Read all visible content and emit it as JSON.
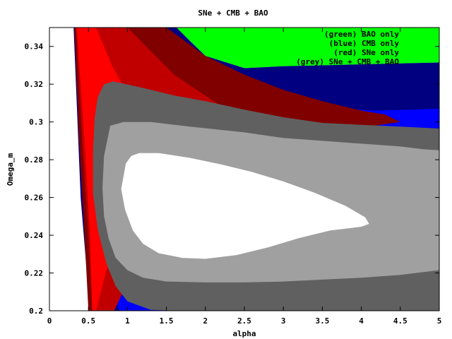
{
  "chart_data": {
    "type": "area",
    "title": "SNe + CMB + BAO",
    "xlabel": "alpha",
    "ylabel": "Omega_m",
    "xlim": [
      0,
      5
    ],
    "ylim": [
      0.2,
      0.35
    ],
    "xticks": [
      {
        "value": 0,
        "label": "0"
      },
      {
        "value": 0.5,
        "label": "0.5"
      },
      {
        "value": 1,
        "label": "1"
      },
      {
        "value": 1.5,
        "label": "1.5"
      },
      {
        "value": 2,
        "label": "2"
      },
      {
        "value": 2.5,
        "label": "2.5"
      },
      {
        "value": 3,
        "label": "3"
      },
      {
        "value": 3.5,
        "label": "3.5"
      },
      {
        "value": 4,
        "label": "4"
      },
      {
        "value": 4.5,
        "label": "4.5"
      },
      {
        "value": 5,
        "label": "5"
      }
    ],
    "yticks": [
      {
        "value": 0.2,
        "label": "0.2"
      },
      {
        "value": 0.22,
        "label": "0.22"
      },
      {
        "value": 0.24,
        "label": "0.24"
      },
      {
        "value": 0.26,
        "label": "0.26"
      },
      {
        "value": 0.28,
        "label": "0.28"
      },
      {
        "value": 0.3,
        "label": "0.3"
      },
      {
        "value": 0.32,
        "label": "0.32"
      },
      {
        "value": 0.34,
        "label": "0.34"
      }
    ],
    "legend": {
      "placement": "top-right",
      "entries": [
        "(green) BAO only",
        "(blue) CMB only",
        "(red) SNe only",
        "(grey) SNe + CMB + BAO"
      ]
    },
    "regions": [
      {
        "name": "bao-green-region",
        "color": "#00ff00",
        "points": [
          [
            1.5,
            0.35
          ],
          [
            5,
            0.35
          ],
          [
            5,
            0.3315
          ],
          [
            4.5,
            0.331
          ],
          [
            4,
            0.3305
          ],
          [
            3.5,
            0.33
          ],
          [
            3,
            0.3295
          ],
          [
            2.5,
            0.3285
          ],
          [
            2,
            0.335
          ],
          [
            1.8,
            0.343
          ],
          [
            1.63,
            0.35
          ]
        ]
      },
      {
        "name": "cmb-blue-outer-region",
        "color": "#000080",
        "points": [
          [
            1.63,
            0.35
          ],
          [
            1.8,
            0.343
          ],
          [
            2,
            0.335
          ],
          [
            2.5,
            0.3285
          ],
          [
            3,
            0.3295
          ],
          [
            3.5,
            0.33
          ],
          [
            4,
            0.3305
          ],
          [
            4.5,
            0.331
          ],
          [
            5,
            0.3315
          ],
          [
            5,
            0.2
          ],
          [
            0.52,
            0.2
          ],
          [
            0.4,
            0.26
          ],
          [
            0.31,
            0.35
          ]
        ]
      },
      {
        "name": "cmb-blue-inner-region",
        "color": "#0000ff",
        "points": [
          [
            0.4,
            0.35
          ],
          [
            1.0,
            0.35
          ],
          [
            1.4,
            0.33
          ],
          [
            2.2,
            0.318
          ],
          [
            3,
            0.312
          ],
          [
            3.7,
            0.307
          ],
          [
            4.2,
            0.306
          ],
          [
            5,
            0.307
          ],
          [
            5,
            0.2
          ],
          [
            0.9,
            0.2
          ],
          [
            0.8,
            0.21
          ],
          [
            0.75,
            0.22
          ],
          [
            0.6,
            0.24
          ],
          [
            0.5,
            0.27
          ],
          [
            0.38,
            0.31
          ]
        ]
      },
      {
        "name": "sne-red-outer-region",
        "color": "#800000",
        "points": [
          [
            0.32,
            0.35
          ],
          [
            1.5,
            0.35
          ],
          [
            2,
            0.335
          ],
          [
            2.5,
            0.325
          ],
          [
            3,
            0.317
          ],
          [
            3.5,
            0.311
          ],
          [
            4,
            0.306
          ],
          [
            4.3,
            0.304
          ],
          [
            4.5,
            0.3
          ],
          [
            3.5,
            0.294
          ],
          [
            3,
            0.288
          ],
          [
            2.2,
            0.264
          ],
          [
            1.5,
            0.24
          ],
          [
            1.1,
            0.22
          ],
          [
            0.9,
            0.21
          ],
          [
            0.8,
            0.2
          ],
          [
            0.5,
            0.2
          ],
          [
            0.45,
            0.24
          ],
          [
            0.38,
            0.29
          ]
        ]
      },
      {
        "name": "sne-red-mid-region",
        "color": "#c00000",
        "points": [
          [
            0.34,
            0.35
          ],
          [
            1.0,
            0.35
          ],
          [
            1.6,
            0.325
          ],
          [
            2.5,
            0.3
          ],
          [
            3.2,
            0.285
          ],
          [
            2.5,
            0.27
          ],
          [
            1.8,
            0.25
          ],
          [
            1.3,
            0.23
          ],
          [
            1.0,
            0.215
          ],
          [
            0.83,
            0.2
          ],
          [
            0.55,
            0.2
          ],
          [
            0.5,
            0.24
          ],
          [
            0.42,
            0.29
          ]
        ]
      },
      {
        "name": "sne-red-inner-region",
        "color": "#ff0000",
        "points": [
          [
            0.35,
            0.35
          ],
          [
            0.6,
            0.35
          ],
          [
            0.8,
            0.33
          ],
          [
            1.2,
            0.3
          ],
          [
            1.8,
            0.28
          ],
          [
            1.5,
            0.265
          ],
          [
            1.1,
            0.25
          ],
          [
            0.85,
            0.235
          ],
          [
            0.72,
            0.22
          ],
          [
            0.6,
            0.2
          ],
          [
            0.55,
            0.2
          ],
          [
            0.52,
            0.24
          ],
          [
            0.45,
            0.29
          ]
        ]
      },
      {
        "name": "combined-grey-outer-region",
        "color": "#606060",
        "points": [
          [
            0.62,
            0.313
          ],
          [
            0.7,
            0.32
          ],
          [
            0.82,
            0.3215
          ],
          [
            1.2,
            0.318
          ],
          [
            1.6,
            0.314
          ],
          [
            2,
            0.311
          ],
          [
            2.5,
            0.3065
          ],
          [
            3,
            0.3025
          ],
          [
            3.5,
            0.2995
          ],
          [
            4,
            0.2985
          ],
          [
            4.5,
            0.2975
          ],
          [
            5,
            0.2965
          ],
          [
            5,
            0.2
          ],
          [
            1.7,
            0.2
          ],
          [
            1.3,
            0.2005
          ],
          [
            1.0,
            0.205
          ],
          [
            0.85,
            0.213
          ],
          [
            0.73,
            0.225
          ],
          [
            0.62,
            0.243
          ],
          [
            0.56,
            0.262
          ],
          [
            0.56,
            0.285
          ],
          [
            0.58,
            0.302
          ]
        ]
      },
      {
        "name": "combined-grey-mid-region",
        "color": "#a0a0a0",
        "points": [
          [
            0.78,
            0.298
          ],
          [
            0.95,
            0.3
          ],
          [
            1.3,
            0.3
          ],
          [
            1.8,
            0.2975
          ],
          [
            2.5,
            0.2945
          ],
          [
            3,
            0.2915
          ],
          [
            3.5,
            0.29
          ],
          [
            4,
            0.2885
          ],
          [
            4.5,
            0.287
          ],
          [
            4.8,
            0.2855
          ],
          [
            5,
            0.285
          ],
          [
            5,
            0.2215
          ],
          [
            4.5,
            0.219
          ],
          [
            4,
            0.2175
          ],
          [
            3.5,
            0.2165
          ],
          [
            3,
            0.2155
          ],
          [
            2.5,
            0.215
          ],
          [
            2,
            0.215
          ],
          [
            1.5,
            0.2155
          ],
          [
            1.2,
            0.2175
          ],
          [
            1.0,
            0.2215
          ],
          [
            0.85,
            0.228
          ],
          [
            0.76,
            0.238
          ],
          [
            0.7,
            0.25
          ],
          [
            0.68,
            0.265
          ],
          [
            0.7,
            0.282
          ]
        ]
      },
      {
        "name": "combined-white-core-region",
        "color": "#ffffff",
        "points": [
          [
            0.98,
            0.278
          ],
          [
            1.05,
            0.282
          ],
          [
            1.15,
            0.2835
          ],
          [
            1.4,
            0.2835
          ],
          [
            1.8,
            0.281
          ],
          [
            2.2,
            0.2775
          ],
          [
            2.6,
            0.2735
          ],
          [
            3,
            0.2685
          ],
          [
            3.4,
            0.2625
          ],
          [
            3.8,
            0.2555
          ],
          [
            4.05,
            0.2495
          ],
          [
            4.1,
            0.246
          ],
          [
            4.0,
            0.2445
          ],
          [
            3.6,
            0.2425
          ],
          [
            3.2,
            0.2385
          ],
          [
            2.8,
            0.2335
          ],
          [
            2.4,
            0.2295
          ],
          [
            2.0,
            0.2275
          ],
          [
            1.7,
            0.228
          ],
          [
            1.4,
            0.2305
          ],
          [
            1.2,
            0.2355
          ],
          [
            1.07,
            0.2425
          ],
          [
            0.97,
            0.2535
          ],
          [
            0.92,
            0.2645
          ]
        ]
      }
    ]
  }
}
